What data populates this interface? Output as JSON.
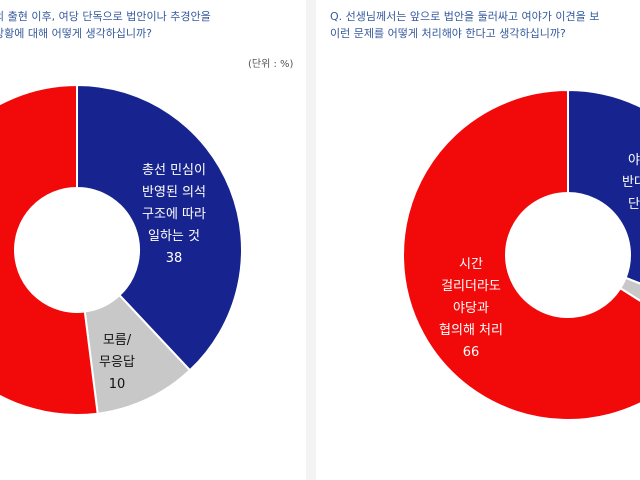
{
  "charts": {
    "left": {
      "question_lines": [
        "의 출현 이후, 여당 단독으로 법안이나 추경안을",
        "상황에 대해 어떻게 생각하십니까?"
      ],
      "unit": "(단위 : %)"
    },
    "right": {
      "question_lines": [
        "Q. 선생님께서는 앞으로 법안을 둘러싸고 여야가 이견을 보",
        "이런 문제를 어떻게 처리해야 한다고 생각하십니까?"
      ]
    }
  },
  "colors": {
    "blue": "#17248f",
    "red": "#f20a0a",
    "gray": "#c8c8c8",
    "bg": "#f3f3f3"
  },
  "chart_data": [
    {
      "type": "pie",
      "slices": [
        {
          "key": "blue",
          "label_lines": [
            "총선 민심이",
            "반영된 의석",
            "구조에 따라",
            "일하는 것"
          ],
          "value_label": "38",
          "value": 38,
          "color": "#17248f",
          "text_color": "#ffffff"
        },
        {
          "key": "gray",
          "label_lines": [
            "모름/",
            "무응답"
          ],
          "value_label": "10",
          "value": 10,
          "color": "#c8c8c8",
          "text_color": "#111111"
        },
        {
          "key": "red",
          "label_lines": [],
          "value_label": "",
          "value": 52,
          "color": "#f20a0a",
          "text_color": "#ffffff"
        }
      ]
    },
    {
      "type": "pie",
      "slices": [
        {
          "key": "blue",
          "label_lines": [
            "야",
            "반대",
            "단"
          ],
          "value_label": "",
          "value": 31,
          "color": "#17248f",
          "text_color": "#ffffff"
        },
        {
          "key": "gray",
          "label_lines": [],
          "value_label": "",
          "value": 3,
          "color": "#c8c8c8",
          "text_color": "#111111"
        },
        {
          "key": "red",
          "label_lines": [
            "시간",
            "걸리더라도",
            "야당과",
            "협의해 처리"
          ],
          "value_label": "66",
          "value": 66,
          "color": "#f20a0a",
          "text_color": "#ffffff"
        }
      ]
    }
  ]
}
